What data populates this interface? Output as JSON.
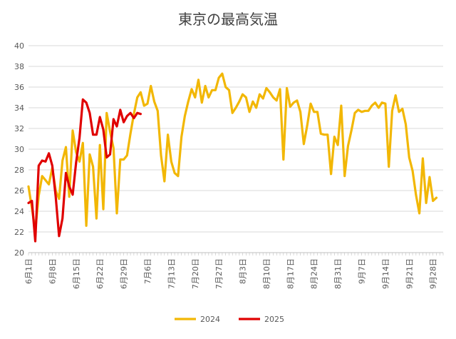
{
  "chart_data": {
    "type": "line",
    "title": "東京の最高気温",
    "xlabel": "",
    "ylabel": "",
    "ylim": [
      20,
      40
    ],
    "yticks": [
      20,
      22,
      24,
      26,
      28,
      30,
      32,
      34,
      36,
      38,
      40
    ],
    "x_start": "6月1日",
    "x_tick_labels": [
      "6月1日",
      "6月8日",
      "6月15日",
      "6月22日",
      "6月29日",
      "7月6日",
      "7月13日",
      "7月20日",
      "7月27日",
      "8月3日",
      "8月10日",
      "8月17日",
      "8月24日",
      "8月31日",
      "9月7日",
      "9月14日",
      "9月21日",
      "9月28日"
    ],
    "grid": true,
    "legend_position": "bottom",
    "series": [
      {
        "name": "2024",
        "color": "#F2B705",
        "values": [
          26.4,
          24.3,
          22.1,
          25.5,
          27.4,
          27.0,
          26.6,
          28.2,
          26.0,
          25.2,
          28.9,
          30.2,
          25.4,
          31.8,
          29.7,
          28.8,
          30.6,
          22.6,
          29.5,
          28.3,
          23.3,
          30.4,
          24.2,
          33.5,
          31.7,
          30.1,
          23.8,
          29.0,
          29.0,
          29.4,
          31.5,
          33.4,
          35.0,
          35.5,
          34.2,
          34.4,
          36.1,
          34.6,
          33.7,
          29.4,
          26.9,
          31.4,
          28.8,
          27.7,
          27.4,
          31.2,
          33.2,
          34.6,
          35.8,
          35.0,
          36.7,
          34.5,
          36.1,
          35.0,
          35.7,
          35.7,
          36.9,
          37.3,
          36.0,
          35.7,
          33.5,
          34.0,
          34.6,
          35.3,
          35.0,
          33.6,
          34.6,
          34.0,
          35.3,
          34.9,
          35.9,
          35.5,
          35.0,
          34.7,
          35.8,
          29.0,
          35.9,
          34.1,
          34.5,
          34.7,
          33.6,
          30.5,
          32.3,
          34.4,
          33.6,
          33.6,
          31.5,
          31.4,
          31.4,
          27.6,
          31.2,
          30.4,
          34.2,
          27.4,
          30.3,
          31.8,
          33.5,
          33.8,
          33.6,
          33.7,
          33.7,
          34.2,
          34.5,
          34.0,
          34.5,
          34.4,
          28.3,
          33.7,
          35.2,
          33.6,
          33.9,
          32.4,
          29.2,
          27.9,
          25.6,
          23.8,
          29.1,
          24.8,
          27.3,
          25.0,
          25.3
        ]
      },
      {
        "name": "2025",
        "color": "#E00000",
        "values": [
          24.8,
          25.0,
          21.1,
          28.4,
          28.9,
          28.8,
          29.6,
          28.4,
          25.4,
          21.6,
          23.3,
          27.7,
          26.4,
          25.6,
          28.7,
          31.1,
          34.8,
          34.5,
          33.5,
          31.4,
          31.4,
          33.1,
          31.9,
          29.2,
          29.5,
          32.9,
          32.2,
          33.8,
          32.6,
          33.2,
          33.5,
          33.0,
          33.5,
          33.4
        ]
      }
    ]
  }
}
